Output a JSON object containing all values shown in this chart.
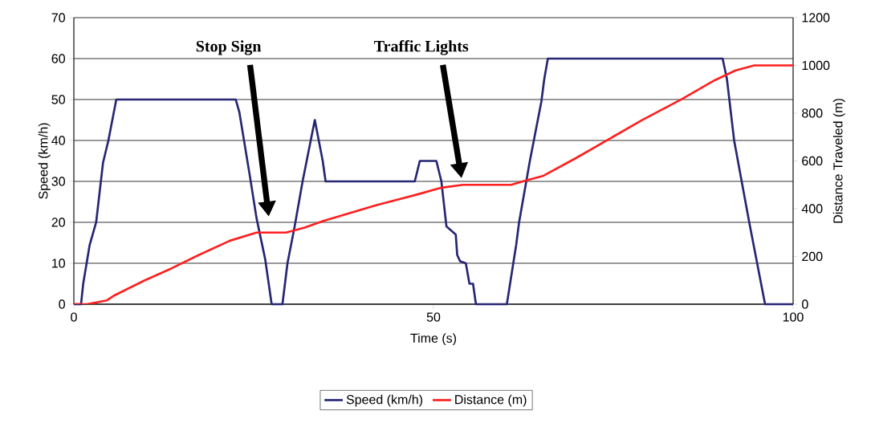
{
  "chart_data": {
    "type": "line",
    "xlabel": "Time (s)",
    "ylabel": "Speed (km/h)",
    "y2label": "Distance Traveled (m)",
    "xlim": [
      0,
      100
    ],
    "xticks": [
      0,
      50,
      100
    ],
    "ylim": [
      0,
      70
    ],
    "yticks": [
      0,
      10,
      20,
      30,
      40,
      50,
      60,
      70
    ],
    "y2lim": [
      0,
      1200
    ],
    "y2ticks": [
      0,
      200,
      400,
      600,
      800,
      1000,
      1200
    ],
    "grid": "y",
    "legend": "bottom",
    "series": [
      {
        "name": "Speed (km/h)",
        "color": "#262673",
        "x": [
          0,
          1.0,
          1.3,
          2.2,
          3.1,
          4.05,
          4.8,
          5.9,
          22.5,
          23.0,
          24.5,
          25.4,
          26.6,
          27.5,
          29.0,
          29.7,
          30.7,
          31.8,
          33.5,
          34.6,
          35.0,
          47.4,
          48.1,
          50.4,
          51.1,
          51.8,
          53.1,
          53.3,
          53.7,
          54.5,
          55.0,
          55.5,
          55.9,
          60.2,
          61.5,
          61.9,
          63.4,
          65.0,
          65.4,
          65.9,
          90.2,
          90.8,
          91.8,
          93.9,
          95.0,
          96.1,
          100
        ],
        "values": [
          0,
          0,
          5,
          14.5,
          20,
          34.5,
          40,
          50,
          50,
          47,
          31,
          21,
          11,
          0,
          0,
          10,
          19,
          30,
          45,
          35,
          30,
          30,
          35,
          35,
          30,
          19,
          17,
          12,
          10.5,
          10,
          5,
          5,
          0,
          0,
          14.5,
          20,
          35,
          49.5,
          55,
          60,
          60,
          55,
          40,
          20,
          10,
          0,
          0
        ]
      },
      {
        "name": "Distance (m)",
        "color": "#ff1f1f",
        "axis": "y2",
        "x": [
          0,
          1.8,
          4.6,
          5.7,
          9.8,
          13.5,
          17.3,
          21.7,
          25.4,
          29.5,
          32.1,
          34.7,
          42.2,
          47.8,
          51.1,
          54.1,
          60.8,
          62.6,
          65.3,
          69.7,
          74.2,
          79.0,
          84.6,
          89.1,
          92.0,
          94.6,
          100
        ],
        "values": [
          0,
          0,
          16,
          38,
          99,
          149,
          205,
          266,
          300,
          300,
          321,
          349,
          416,
          460,
          488,
          500,
          500,
          516,
          538,
          610,
          688,
          771,
          860,
          938,
          979,
          1000,
          1000
        ]
      }
    ],
    "annotations": [
      "Stop Sign",
      "Traffic Lights"
    ]
  }
}
